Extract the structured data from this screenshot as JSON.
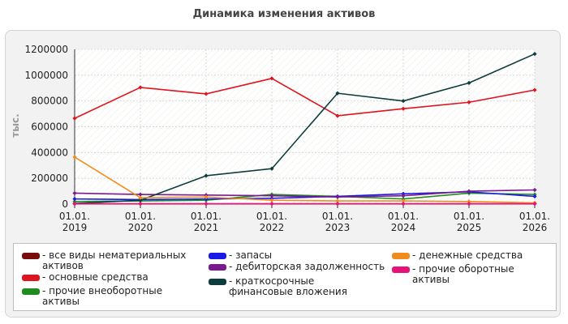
{
  "chart_data": {
    "type": "line",
    "title": "Динамика изменения активов",
    "ylabel": "тыс.",
    "xlabel": "",
    "ylim": [
      0,
      1200000
    ],
    "yticks": [
      "0",
      "200000",
      "400000",
      "600000",
      "800000",
      "1000000",
      "1200000"
    ],
    "categories": [
      [
        "01.01.",
        "2019"
      ],
      [
        "01.01.",
        "2020"
      ],
      [
        "01.01.",
        "2021"
      ],
      [
        "01.01.",
        "2022"
      ],
      [
        "01.01.",
        "2023"
      ],
      [
        "01.01.",
        "2024"
      ],
      [
        "01.01.",
        "2025"
      ],
      [
        "01.01.",
        "2026"
      ]
    ],
    "grid": true,
    "legend_position": "bottom",
    "series": [
      {
        "name": "- все виды нематериальных активов",
        "color": "#7b0c0c",
        "values": [
          2000,
          2000,
          2000,
          2000,
          2000,
          2000,
          2000,
          2000
        ]
      },
      {
        "name": "- основные средства",
        "color": "#e0141e",
        "values": [
          665000,
          905000,
          855000,
          975000,
          685000,
          740000,
          790000,
          885000
        ]
      },
      {
        "name": "- прочие внеоборотные активы",
        "color": "#1f8c1f",
        "values": [
          20000,
          25000,
          30000,
          75000,
          60000,
          40000,
          85000,
          75000
        ]
      },
      {
        "name": "- запасы",
        "color": "#1a1ae6",
        "values": [
          40000,
          35000,
          40000,
          45000,
          60000,
          80000,
          95000,
          60000
        ]
      },
      {
        "name": "- дебиторская задолженность",
        "color": "#7a1a8c",
        "values": [
          85000,
          75000,
          70000,
          65000,
          55000,
          65000,
          100000,
          110000
        ]
      },
      {
        "name": "- краткосрочные финансовые вложения",
        "color": "#0f3d3d",
        "values": [
          5000,
          30000,
          220000,
          275000,
          860000,
          800000,
          940000,
          1165000
        ]
      },
      {
        "name": "- денежные средства",
        "color": "#f08c1e",
        "values": [
          365000,
          50000,
          55000,
          30000,
          25000,
          25000,
          20000,
          10000
        ]
      },
      {
        "name": "- прочие оборотные активы",
        "color": "#e6147a",
        "values": [
          3000,
          3000,
          3000,
          3000,
          3000,
          3000,
          3000,
          3000
        ]
      }
    ]
  }
}
